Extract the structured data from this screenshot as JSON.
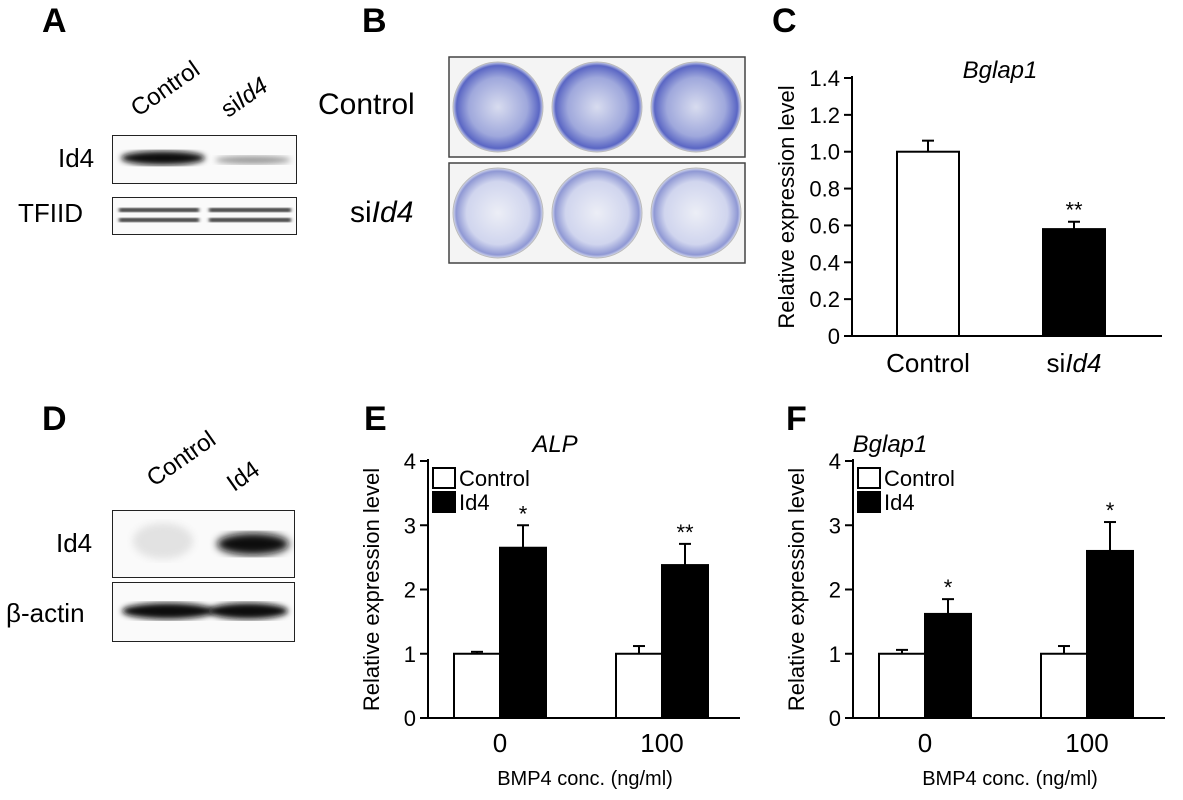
{
  "panels": {
    "A": {
      "letter": "A",
      "lanes": [
        "Control",
        "siId4"
      ],
      "lane_parts": [
        {
          "plain": "Control",
          "italic": ""
        },
        {
          "plain": "si",
          "italic": "Id4"
        }
      ],
      "rows": [
        "Id4",
        "TFIID"
      ]
    },
    "B": {
      "letter": "B",
      "row_labels": [
        {
          "plain": "Control",
          "italic": ""
        },
        {
          "plain": "si",
          "italic": "Id4"
        }
      ]
    },
    "C": {
      "letter": "C"
    },
    "D": {
      "letter": "D",
      "lanes": [
        "Control",
        "Id4"
      ],
      "rows": [
        "Id4",
        "β-actin"
      ]
    },
    "E": {
      "letter": "E"
    },
    "F": {
      "letter": "F"
    }
  },
  "chart_data": [
    {
      "id": "C",
      "type": "bar",
      "title": "Bglap1",
      "ylabel": "Relative expression level",
      "xlabel": "",
      "categories": [
        "Control",
        "siId4"
      ],
      "category_parts": [
        {
          "plain": "Control",
          "italic": ""
        },
        {
          "plain": "si",
          "italic": "Id4"
        }
      ],
      "values": [
        1.0,
        0.58
      ],
      "errors": [
        0.06,
        0.04
      ],
      "significance": [
        "",
        "**"
      ],
      "bar_colors": [
        "#ffffff",
        "#000000"
      ],
      "ylim": [
        0,
        1.4
      ],
      "yticks": [
        "0",
        "0.2",
        "0.4",
        "0.6",
        "0.8",
        "1.0",
        "1.2",
        "1.4"
      ],
      "ytick_values": [
        0,
        0.2,
        0.4,
        0.6,
        0.8,
        1.0,
        1.2,
        1.4
      ]
    },
    {
      "id": "E",
      "type": "bar",
      "title": "ALP",
      "ylabel": "Relative expression level",
      "xlabel": "BMP4 conc. (ng/ml)",
      "categories": [
        "0",
        "100"
      ],
      "series": [
        {
          "name": "Control",
          "values": [
            1.0,
            1.0
          ],
          "errors": [
            0.03,
            0.12
          ],
          "color": "#ffffff",
          "significance": [
            "",
            ""
          ]
        },
        {
          "name": "Id4",
          "values": [
            2.65,
            2.38
          ],
          "errors": [
            0.35,
            0.33
          ],
          "color": "#000000",
          "significance": [
            "*",
            "**"
          ]
        }
      ],
      "legend": "top-left",
      "ylim": [
        0,
        4
      ],
      "yticks": [
        "0",
        "1",
        "2",
        "3",
        "4"
      ],
      "ytick_values": [
        0,
        1,
        2,
        3,
        4
      ]
    },
    {
      "id": "F",
      "type": "bar",
      "title": "Bglap1",
      "ylabel": "Relative expression level",
      "xlabel": "BMP4 conc. (ng/ml)",
      "categories": [
        "0",
        "100"
      ],
      "series": [
        {
          "name": "Control",
          "values": [
            1.0,
            1.0
          ],
          "errors": [
            0.06,
            0.12
          ],
          "color": "#ffffff",
          "significance": [
            "",
            ""
          ]
        },
        {
          "name": "Id4",
          "values": [
            1.62,
            2.6
          ],
          "errors": [
            0.23,
            0.45
          ],
          "color": "#000000",
          "significance": [
            "*",
            "*"
          ]
        }
      ],
      "legend": "top-left",
      "ylim": [
        0,
        4
      ],
      "yticks": [
        "0",
        "1",
        "2",
        "3",
        "4"
      ],
      "ytick_values": [
        0,
        1,
        2,
        3,
        4
      ]
    }
  ]
}
